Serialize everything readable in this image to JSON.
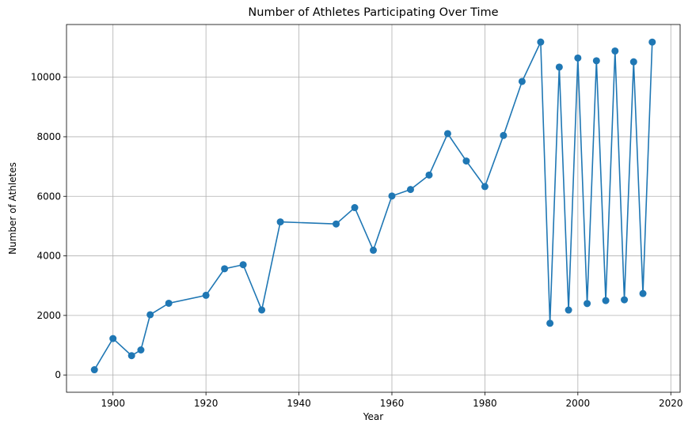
{
  "chart_data": {
    "type": "line",
    "title": "Number of Athletes Participating Over Time",
    "xlabel": "Year",
    "ylabel": "Number of Athletes",
    "xlim": [
      1890,
      2022
    ],
    "ylim": [
      -580,
      11770
    ],
    "x_ticks": [
      1900,
      1920,
      1940,
      1960,
      1980,
      2000,
      2020
    ],
    "y_ticks": [
      0,
      2000,
      4000,
      6000,
      8000,
      10000
    ],
    "grid": true,
    "color": "#1f77b4",
    "marker": "circle",
    "series": [
      {
        "x": [
          1896,
          1900,
          1904,
          1906,
          1908,
          1912,
          1920,
          1924,
          1928,
          1932,
          1936,
          1948,
          1952,
          1956,
          1960,
          1964,
          1968,
          1972,
          1976,
          1980,
          1984,
          1988,
          1992,
          1994,
          1996,
          1998,
          2000,
          2002,
          2004,
          2006,
          2008,
          2010,
          2012,
          2014,
          2016
        ],
        "y": [
          176,
          1224,
          650,
          841,
          2024,
          2409,
          2676,
          3567,
          3703,
          2183,
          5141,
          5071,
          5620,
          4190,
          6011,
          6229,
          6714,
          8105,
          7186,
          6328,
          8044,
          9858,
          11182,
          1737,
          10340,
          2182,
          10645,
          2399,
          10553,
          2498,
          10881,
          2525,
          10517,
          2736,
          11180
        ]
      }
    ]
  }
}
